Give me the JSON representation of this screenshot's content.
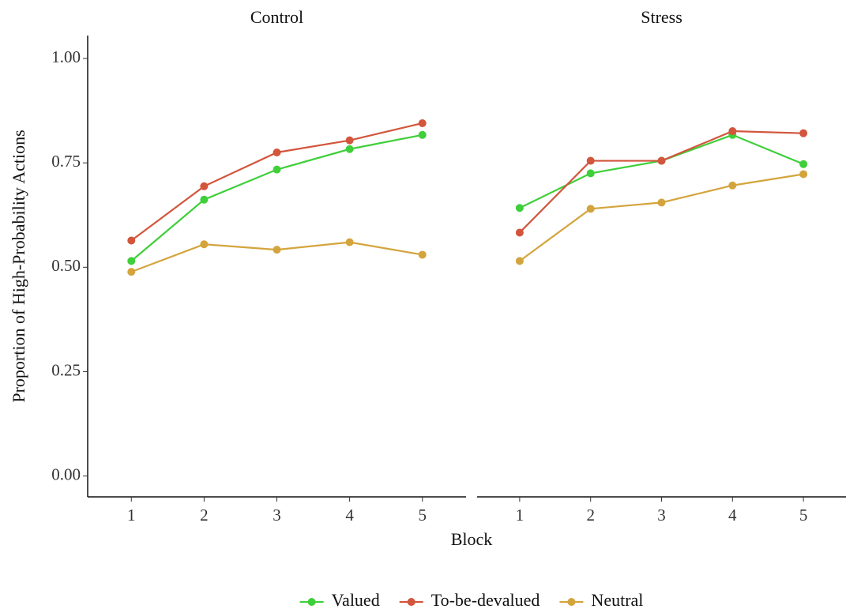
{
  "chart_data": [
    {
      "type": "line",
      "title": "Control",
      "x": [
        1,
        2,
        3,
        4,
        5
      ],
      "xlim": [
        0.4,
        5.6
      ],
      "xticks": [
        1,
        2,
        3,
        4,
        5
      ],
      "ylim": [
        -0.05,
        1.055
      ],
      "yticks": [
        {
          "value": 0,
          "label": "0.00"
        },
        {
          "value": 0.25,
          "label": "0.25"
        },
        {
          "value": 0.5,
          "label": "0.50"
        },
        {
          "value": 0.75,
          "label": "0.75"
        },
        {
          "value": 1,
          "label": "1.00"
        }
      ],
      "series": [
        {
          "name": "Valued",
          "color": "#3fcf3a",
          "values": [
            0.515,
            0.662,
            0.734,
            0.783,
            0.817
          ]
        },
        {
          "name": "To-be-devalued",
          "color": "#d2553c",
          "values": [
            0.564,
            0.694,
            0.775,
            0.804,
            0.845
          ]
        },
        {
          "name": "Neutral",
          "color": "#d4a43c",
          "values": [
            0.489,
            0.555,
            0.542,
            0.56,
            0.53
          ]
        }
      ]
    },
    {
      "type": "line",
      "title": "Stress",
      "x": [
        1,
        2,
        3,
        4,
        5
      ],
      "xlim": [
        0.4,
        5.6
      ],
      "xticks": [
        1,
        2,
        3,
        4,
        5
      ],
      "ylim": [
        -0.05,
        1.055
      ],
      "series": [
        {
          "name": "Valued",
          "color": "#3fcf3a",
          "values": [
            0.642,
            0.725,
            0.755,
            0.817,
            0.747
          ]
        },
        {
          "name": "To-be-devalued",
          "color": "#d2553c",
          "values": [
            0.583,
            0.755,
            0.755,
            0.826,
            0.821
          ]
        },
        {
          "name": "Neutral",
          "color": "#d4a43c",
          "values": [
            0.515,
            0.64,
            0.655,
            0.696,
            0.723
          ]
        }
      ]
    }
  ],
  "y_label": "Proportion of High-Probability Actions",
  "x_label": "Block"
}
